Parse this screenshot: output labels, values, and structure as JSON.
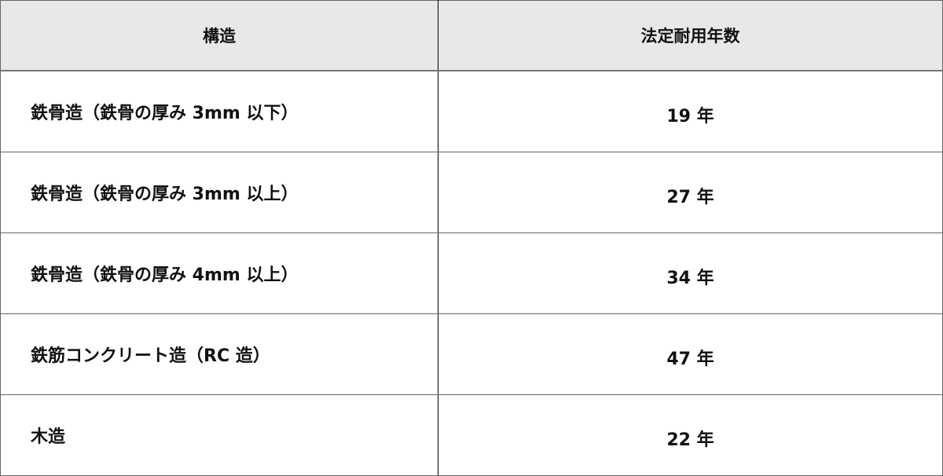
{
  "table": {
    "headers": [
      "構造",
      "法定耐用年数"
    ],
    "rows": [
      {
        "structure": "鉄骨造（鉄骨の厚み 3mm 以下）",
        "years": "19 年"
      },
      {
        "structure": "鉄骨造（鉄骨の厚み 3mm 以上）",
        "years": "27 年"
      },
      {
        "structure": "鉄骨造（鉄骨の厚み 4mm 以上）",
        "years": "34 年"
      },
      {
        "structure": "鉄筋コンクリート造（RC 造）",
        "years": "47 年"
      },
      {
        "structure": "木造",
        "years": "22 年"
      }
    ]
  }
}
